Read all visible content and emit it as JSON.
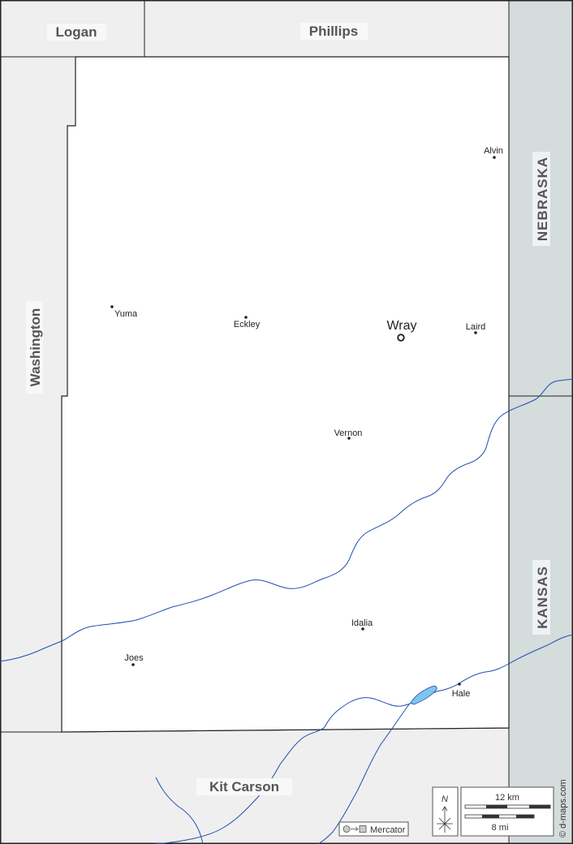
{
  "neighbors": {
    "logan": "Logan",
    "phillips": "Phillips",
    "washington": "Washington",
    "kit_carson": "Kit Carson"
  },
  "states": {
    "nebraska": "NEBRASKA",
    "kansas": "KANSAS"
  },
  "county_seat": {
    "name": "Wray"
  },
  "towns": [
    {
      "name": "Alvin"
    },
    {
      "name": "Yuma"
    },
    {
      "name": "Eckley"
    },
    {
      "name": "Laird"
    },
    {
      "name": "Vernon"
    },
    {
      "name": "Idalia"
    },
    {
      "name": "Joes"
    },
    {
      "name": "Hale"
    }
  ],
  "legend": {
    "north": "N",
    "scale_km": "12 km",
    "scale_mi": "8 mi",
    "projection": "Mercator",
    "credit": "© d-maps.com"
  },
  "colors": {
    "neighbor_fill": "#efefef",
    "state_fill": "#d4dcdc",
    "river": "#1f4fb0",
    "lake": "#7fc4ee",
    "border": "#222222"
  }
}
